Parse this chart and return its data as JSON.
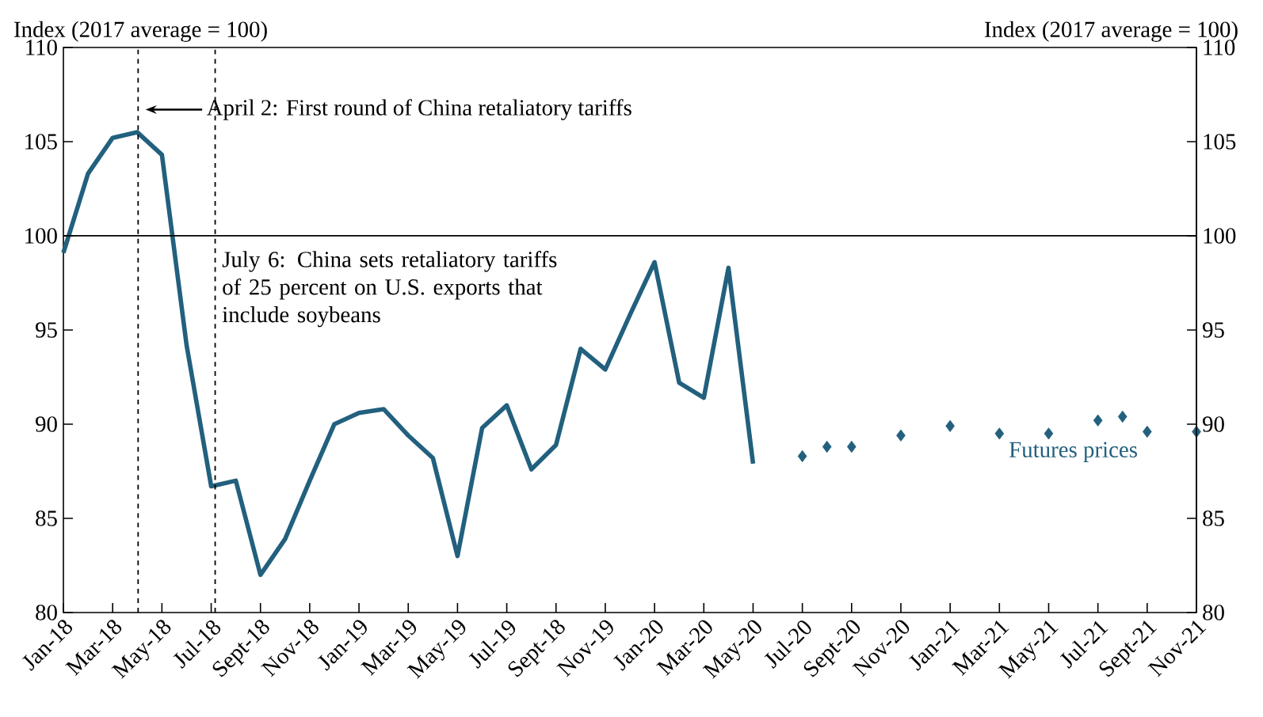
{
  "chart_data": {
    "type": "line",
    "ylabel": "Index (2017 average = 100)",
    "y2label": "Index (2017 average = 100)",
    "xlim": [
      "2018-01",
      "2021-11"
    ],
    "xticks": [
      {
        "value": "2018-01",
        "label": "Jan-18"
      },
      {
        "value": "2018-03",
        "label": "Mar-18"
      },
      {
        "value": "2018-05",
        "label": "May-18"
      },
      {
        "value": "2018-07",
        "label": "Jul-18"
      },
      {
        "value": "2018-09",
        "label": "Sept-18"
      },
      {
        "value": "2018-11",
        "label": "Nov-18"
      },
      {
        "value": "2019-01",
        "label": "Jan-19"
      },
      {
        "value": "2019-03",
        "label": "Mar-19"
      },
      {
        "value": "2019-05",
        "label": "May-19"
      },
      {
        "value": "2019-07",
        "label": "Jul-19"
      },
      {
        "value": "2019-09",
        "label": "Sept-18"
      },
      {
        "value": "2019-11",
        "label": "Nov-19"
      },
      {
        "value": "2020-01",
        "label": "Jan-20"
      },
      {
        "value": "2020-03",
        "label": "Mar-20"
      },
      {
        "value": "2020-05",
        "label": "May-20"
      },
      {
        "value": "2020-07",
        "label": "Jul-20"
      },
      {
        "value": "2020-09",
        "label": "Sept-20"
      },
      {
        "value": "2020-11",
        "label": "Nov-20"
      },
      {
        "value": "2021-01",
        "label": "Jan-21"
      },
      {
        "value": "2021-03",
        "label": "Mar-21"
      },
      {
        "value": "2021-05",
        "label": "May-21"
      },
      {
        "value": "2021-07",
        "label": "Jul-21"
      },
      {
        "value": "2021-09",
        "label": "Sept-21"
      },
      {
        "value": "2021-11",
        "label": "Nov-21"
      }
    ],
    "ylim": [
      80,
      110
    ],
    "yticks": [
      80,
      85,
      90,
      95,
      100,
      105,
      110
    ],
    "y2lim": [
      80,
      110
    ],
    "y2ticks": [
      80,
      85,
      90,
      95,
      100,
      105,
      110
    ],
    "grid": false,
    "legend": false,
    "series": [
      {
        "type": "line",
        "color": "#22607e",
        "x": [
          "2018-01",
          "2018-02",
          "2018-03",
          "2018-04",
          "2018-05",
          "2018-06",
          "2018-07",
          "2018-08",
          "2018-09",
          "2018-10",
          "2018-11",
          "2018-12",
          "2019-01",
          "2019-02",
          "2019-03",
          "2019-04",
          "2019-05",
          "2019-06",
          "2019-07",
          "2019-08",
          "2019-09",
          "2019-10",
          "2019-11",
          "2019-12",
          "2020-01",
          "2020-02",
          "2020-03",
          "2020-04",
          "2020-05"
        ],
        "values": [
          99.1,
          103.3,
          105.2,
          105.5,
          104.3,
          94.2,
          86.7,
          87.0,
          82.0,
          83.9,
          87.0,
          90.0,
          90.6,
          90.8,
          89.4,
          88.2,
          83.0,
          89.8,
          91.0,
          87.6,
          88.9,
          94.0,
          92.9,
          95.8,
          98.6,
          92.2,
          91.4,
          98.3,
          87.9
        ]
      },
      {
        "type": "scatter",
        "name": "Futures prices",
        "color": "#22607e",
        "marker": "diamond",
        "x": [
          "2020-07",
          "2020-08",
          "2020-09",
          "2020-11",
          "2021-01",
          "2021-03",
          "2021-05",
          "2021-07",
          "2021-08",
          "2021-09",
          "2021-11"
        ],
        "values": [
          88.3,
          88.8,
          88.8,
          89.4,
          89.9,
          89.5,
          89.5,
          90.2,
          90.4,
          89.6,
          89.6
        ]
      }
    ],
    "ref_lines": [
      {
        "axis": "x",
        "value": "2018-04-02",
        "label": "April 2: First round of China retaliatory tariffs",
        "line_style": "dashed",
        "color": "#000000"
      },
      {
        "axis": "x",
        "value": "2018-07-06",
        "label": "July 6: China sets retaliatory tariffs of 25 percent on U.S. exports that include soybeans",
        "line_style": "dashed",
        "color": "#000000"
      },
      {
        "axis": "y",
        "value": 100,
        "color": "#000000"
      }
    ]
  }
}
